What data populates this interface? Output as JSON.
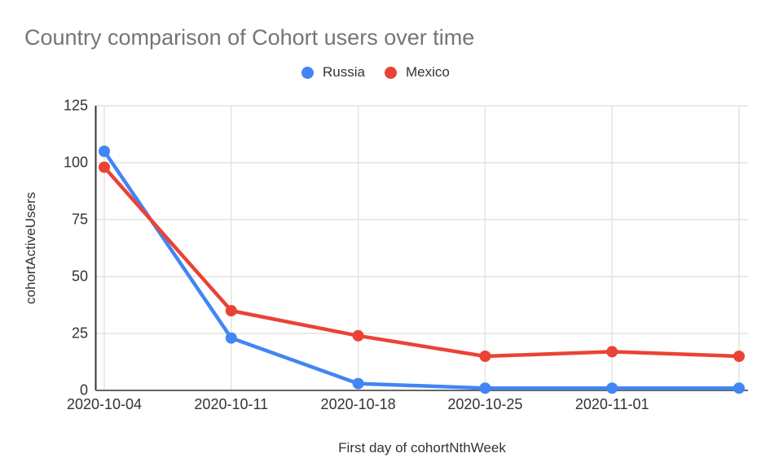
{
  "chart": {
    "title": "Country comparison of Cohort users over time",
    "x_axis_title": "First day of cohortNthWeek",
    "y_axis_title": "cohortActiveUsers"
  },
  "legend": {
    "position": "top",
    "items": [
      {
        "label": "Russia",
        "color": "#4285F4"
      },
      {
        "label": "Mexico",
        "color": "#EA4335"
      }
    ]
  },
  "chart_data": {
    "type": "line",
    "title": "Country comparison of Cohort users over time",
    "xlabel": "First day of cohortNthWeek",
    "ylabel": "cohortActiveUsers",
    "x_tick_labels": [
      "2020-10-04",
      "2020-10-11",
      "2020-10-18",
      "2020-10-25",
      "2020-11-01",
      ""
    ],
    "series": [
      {
        "name": "Russia",
        "color": "#4285F4",
        "values": [
          105,
          23,
          3,
          1,
          1,
          1
        ]
      },
      {
        "name": "Mexico",
        "color": "#EA4335",
        "values": [
          98,
          35,
          24,
          15,
          17,
          15
        ]
      }
    ],
    "ylim": [
      0,
      125
    ],
    "yticks": [
      0,
      25,
      50,
      75,
      100,
      125
    ],
    "grid": true,
    "legend_position": "top",
    "marker": "circle"
  },
  "colors": {
    "title_text": "#757575",
    "tick_text": "#333333",
    "gridline": "#e4e4e4",
    "left_axis": "#333333",
    "bottom_axis": "#666666",
    "background": "#ffffff"
  }
}
